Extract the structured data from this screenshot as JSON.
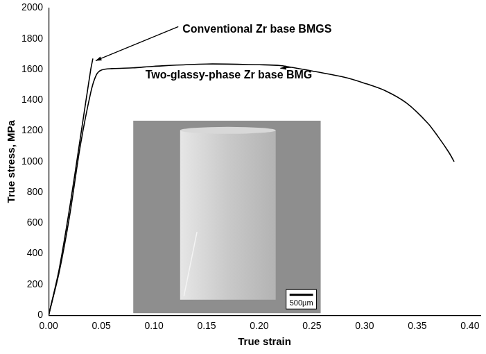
{
  "chart_data": {
    "type": "line",
    "x_label": "True strain",
    "y_label": "True stress, MPa",
    "xlim": [
      0,
      0.41
    ],
    "xticks": [
      {
        "value": 0,
        "label": "0.00"
      },
      {
        "value": 0.05,
        "label": "0.05"
      },
      {
        "value": 0.1,
        "label": "0.10"
      },
      {
        "value": 0.15,
        "label": "0.15"
      },
      {
        "value": 0.2,
        "label": "0.20"
      },
      {
        "value": 0.25,
        "label": "0.25"
      },
      {
        "value": 0.3,
        "label": "0.30"
      },
      {
        "value": 0.35,
        "label": "0.35"
      },
      {
        "value": 0.4,
        "label": "0.40"
      }
    ],
    "ylim": [
      0,
      2000
    ],
    "yticks": [
      0,
      200,
      400,
      600,
      800,
      1000,
      1200,
      1400,
      1600,
      1800,
      2000
    ],
    "grid": false,
    "legend": false,
    "series": [
      {
        "name": "Conventional Zr base BMGS",
        "color": "#000000",
        "marker": "none",
        "line_style": "solid",
        "x": [
          0,
          0.01,
          0.02,
          0.03,
          0.04,
          0.042
        ],
        "values": [
          0,
          300,
          700,
          1150,
          1600,
          1670
        ]
      },
      {
        "name": "Two-glassy-phase Zr base BMG",
        "color": "#000000",
        "marker": "none",
        "line_style": "solid",
        "x": [
          0,
          0.01,
          0.02,
          0.03,
          0.04,
          0.045,
          0.05,
          0.06,
          0.08,
          0.1,
          0.15,
          0.2,
          0.22,
          0.25,
          0.28,
          0.3,
          0.32,
          0.34,
          0.36,
          0.37,
          0.38,
          0.385
        ],
        "values": [
          0,
          280,
          650,
          1100,
          1450,
          1560,
          1595,
          1605,
          1610,
          1620,
          1635,
          1630,
          1625,
          1590,
          1550,
          1510,
          1460,
          1380,
          1250,
          1160,
          1060,
          1000
        ]
      }
    ],
    "inset": {
      "scale_bar": "500µm"
    }
  }
}
